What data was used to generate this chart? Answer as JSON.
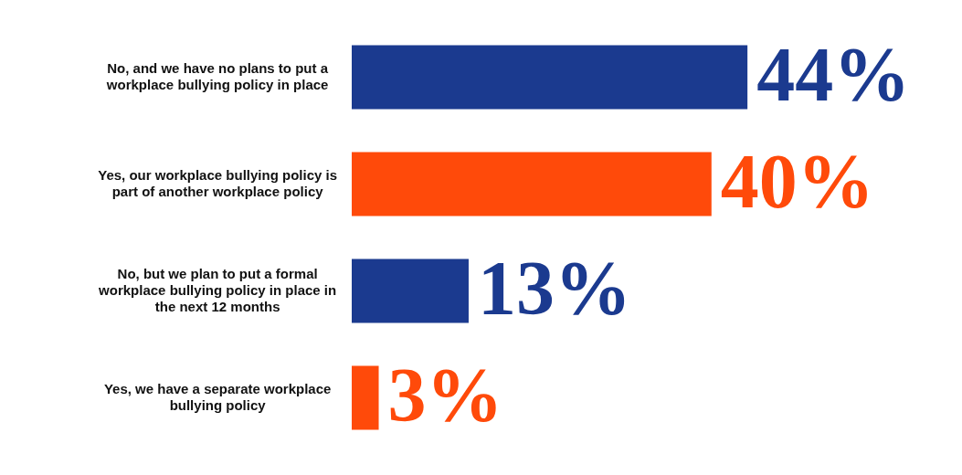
{
  "chart_data": {
    "type": "bar",
    "orientation": "horizontal",
    "categories": [
      "No, and we have no plans to put a workplace bullying policy in place",
      "Yes, our workplace bullying policy is part of another workplace policy",
      "No, but we plan to put a formal workplace bullying policy in place in the next 12 months",
      "Yes, we have a separate workplace bullying policy"
    ],
    "values": [
      44,
      40,
      13,
      3
    ],
    "colors": [
      "#1b3a8f",
      "#ff4a0a",
      "#1b3a8f",
      "#ff4a0a"
    ],
    "value_labels": [
      "44%",
      "40%",
      "13%",
      "3%"
    ],
    "tick_labels": "y"
  }
}
